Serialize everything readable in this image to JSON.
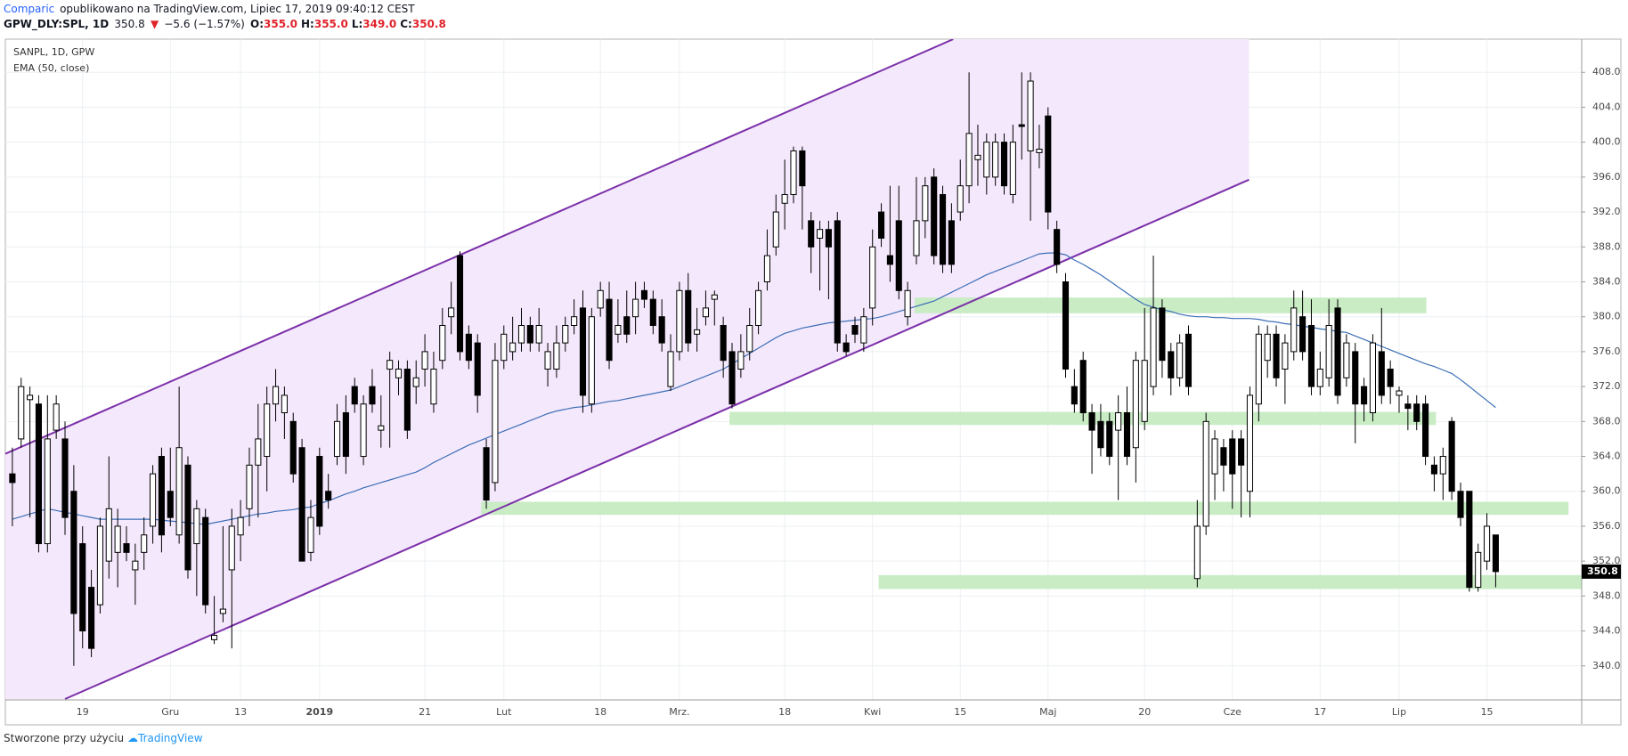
{
  "header": {
    "author": "Comparic",
    "published": "opublikowano na TradingView.com, Lipiec 17, 2019 09:40:12 CEST",
    "symbol": "GPW_DLY:SPL, 1D",
    "last": "350.8",
    "change": "−5.6 (−1.57%)",
    "ohlc": [
      {
        "key": "O:",
        "value": "355.0"
      },
      {
        "key": "H:",
        "value": "355.0"
      },
      {
        "key": "L:",
        "value": "349.0"
      },
      {
        "key": "C:",
        "value": "350.8"
      }
    ]
  },
  "chart_data": {
    "type": "candlestick",
    "title": "SANPL, 1D, GPW",
    "categories": [
      null,
      null,
      null,
      null,
      null,
      null,
      null,
      null,
      "19",
      null,
      null,
      null,
      null,
      null,
      null,
      null,
      null,
      null,
      "Gru",
      null,
      null,
      null,
      null,
      null,
      null,
      null,
      "13",
      null,
      null,
      null,
      null,
      null,
      null,
      null,
      null,
      "2019",
      null,
      null,
      null,
      null,
      null,
      null,
      null,
      null,
      null,
      null,
      null,
      "21",
      null,
      null,
      null,
      null,
      null,
      null,
      null,
      null,
      "Lut",
      null,
      null,
      null,
      null,
      null,
      null,
      null,
      null,
      null,
      null,
      "18",
      null,
      null,
      null,
      null,
      null,
      null,
      null,
      null,
      "Mrz.",
      null,
      null,
      null,
      null,
      null,
      null,
      null,
      null,
      null,
      null,
      null,
      "18",
      null,
      null,
      null,
      null,
      null,
      null,
      null,
      null,
      null,
      "Kwi",
      null,
      null,
      null,
      null,
      null,
      null,
      null,
      null,
      null,
      "15",
      null,
      null,
      null,
      null,
      null,
      null,
      null,
      null,
      null,
      "Maj",
      null,
      null,
      null,
      null,
      null,
      null,
      null,
      null,
      null,
      null,
      "20",
      null,
      null,
      null,
      null,
      null,
      null,
      null,
      null,
      null,
      "Cze",
      null,
      null,
      null,
      null,
      null,
      null,
      null,
      null,
      null,
      "17",
      null,
      null,
      null,
      null,
      null,
      null,
      null,
      null,
      "Lip",
      null,
      null,
      null,
      null,
      null,
      null,
      null,
      null,
      null,
      "15",
      null
    ],
    "open": [
      362,
      366,
      370.5,
      370,
      354,
      367,
      366,
      360,
      354,
      349,
      347,
      352,
      353,
      354,
      351,
      353,
      356,
      364,
      360,
      355,
      363,
      354,
      357,
      343,
      346,
      351,
      355,
      358,
      363,
      364,
      370,
      369,
      368,
      365,
      353,
      364,
      360,
      364,
      369,
      372,
      364,
      372,
      367,
      374,
      373,
      374,
      372,
      374,
      370,
      375,
      380,
      387,
      378,
      377,
      365,
      361,
      375,
      376,
      377,
      379,
      377,
      374,
      374,
      377,
      379,
      381,
      370,
      381,
      382,
      378,
      380,
      380,
      383,
      382,
      380,
      372,
      376,
      383,
      378,
      380,
      382,
      379,
      376,
      374,
      376,
      379,
      384,
      388,
      393,
      394,
      399,
      391,
      389,
      390,
      391,
      377,
      379,
      377,
      381,
      392,
      387,
      391,
      380,
      387,
      391,
      396,
      394,
      391,
      392,
      395,
      398,
      396,
      396,
      400,
      394,
      402,
      399,
      398.8,
      403,
      390,
      384,
      372,
      375,
      369,
      368,
      368,
      367,
      369,
      365,
      368,
      372,
      381,
      376,
      373,
      378,
      350,
      356,
      362,
      365,
      366,
      366,
      360,
      370,
      375,
      378,
      374,
      376,
      380,
      379,
      372,
      373,
      381,
      373,
      376,
      372,
      369,
      376,
      374,
      371,
      370,
      370,
      370,
      363,
      362,
      368,
      360,
      360,
      349,
      352,
      355
    ],
    "high": [
      365,
      373,
      372,
      371,
      371,
      371,
      368,
      363,
      356,
      351,
      357,
      364,
      358,
      356,
      354,
      357,
      363,
      365,
      365,
      372,
      364,
      359,
      358,
      348,
      356,
      358,
      359,
      365,
      370,
      372,
      374,
      372,
      369,
      366,
      359,
      365,
      362,
      370,
      371,
      373,
      371,
      374,
      371,
      376,
      375,
      375,
      375,
      378,
      376,
      381,
      384,
      387.5,
      379,
      378,
      366,
      377,
      379,
      380,
      381,
      380,
      381,
      377,
      379,
      380,
      382,
      383,
      381,
      384,
      384,
      382,
      383,
      384,
      384,
      383,
      382,
      378,
      384,
      385,
      381,
      383,
      383,
      380,
      377,
      378,
      381,
      384,
      390,
      394,
      398,
      399.5,
      399.5,
      392,
      391,
      391,
      392,
      378,
      380,
      381,
      390,
      393,
      395,
      395,
      384,
      396,
      396,
      397,
      395,
      393,
      398,
      408,
      402,
      401,
      401,
      401,
      402,
      408,
      408,
      402,
      404,
      391,
      385,
      374,
      376,
      370,
      370,
      369,
      371,
      372,
      376,
      381,
      387,
      382,
      377,
      378,
      379,
      359,
      369,
      367,
      366,
      367,
      367,
      372,
      379,
      379,
      379,
      378,
      383,
      383,
      382,
      376,
      382,
      382,
      378,
      377,
      373,
      378,
      381,
      375,
      372,
      371,
      371,
      371,
      364,
      365,
      368.5,
      361,
      360,
      354,
      357.5,
      355
    ],
    "low": [
      356,
      365,
      357,
      353,
      353,
      366,
      355,
      340,
      342,
      341,
      346,
      350,
      349,
      352,
      347,
      351,
      354,
      353,
      356,
      354,
      350,
      348,
      346,
      342.5,
      345,
      342,
      352,
      356,
      357,
      360,
      368,
      366,
      361,
      352,
      352,
      355,
      358,
      363,
      362,
      369,
      363,
      369,
      365,
      365,
      371,
      366,
      370,
      372,
      369,
      374,
      378,
      375,
      374,
      369,
      358,
      360,
      374,
      375,
      376,
      376,
      376,
      372,
      373,
      376,
      378,
      369,
      369,
      380,
      374,
      377,
      377,
      378,
      381,
      378,
      376,
      371.5,
      375,
      376,
      376,
      379,
      379,
      373,
      369.5,
      373,
      375,
      378,
      383,
      387,
      390,
      393,
      390,
      385,
      383,
      382,
      376,
      375.5,
      377,
      376,
      379,
      388,
      384,
      382,
      379,
      386,
      389,
      386,
      385,
      385,
      391,
      393,
      395,
      394,
      395,
      394,
      393,
      398,
      391,
      397,
      390,
      385,
      373,
      369,
      368,
      362,
      364,
      363,
      359,
      363,
      361,
      367,
      371,
      373,
      371,
      372,
      371,
      349,
      355,
      359,
      360,
      358,
      357,
      357,
      368,
      373,
      372,
      370,
      375,
      375,
      371,
      371,
      372,
      370,
      372,
      365.5,
      368,
      368,
      370,
      370,
      369,
      367,
      367,
      363,
      360,
      359,
      359,
      356,
      348.5,
      348.5,
      351,
      349
    ],
    "close": [
      361,
      372,
      371,
      354,
      366,
      370,
      357,
      346,
      344,
      342,
      356,
      358,
      356,
      353,
      352,
      355,
      362,
      355,
      357,
      365,
      351,
      358,
      347,
      343.5,
      346.5,
      356,
      357,
      363,
      366,
      370,
      372,
      371,
      362,
      352,
      357,
      356,
      359,
      368,
      364,
      370,
      370,
      370,
      367.5,
      375,
      374,
      367,
      373,
      376,
      374,
      379,
      381,
      376,
      375,
      371,
      359,
      375,
      378,
      377,
      379,
      377,
      379,
      376,
      377,
      379,
      380,
      371,
      380,
      383,
      375,
      379,
      378,
      382,
      382,
      379,
      377,
      376,
      383,
      377,
      378.5,
      381,
      382.5,
      375,
      370,
      376,
      379,
      383,
      387,
      392,
      394,
      399,
      395,
      388,
      390,
      388,
      377,
      376,
      378,
      380,
      388,
      389,
      386,
      383,
      383,
      391,
      395,
      387,
      386,
      386,
      395,
      401,
      398.5,
      400,
      400,
      395,
      400,
      401.8,
      407,
      399.2,
      392,
      386,
      374,
      370,
      369,
      367,
      365,
      364,
      369,
      364,
      375,
      375,
      381,
      375,
      373,
      377,
      372,
      356,
      368,
      366,
      363,
      362,
      363,
      371,
      378,
      378,
      373,
      377,
      381,
      376,
      372,
      374,
      379,
      371,
      377,
      370,
      370,
      377,
      371,
      372,
      371.5,
      369.5,
      368,
      364,
      362,
      364,
      360,
      357,
      349,
      353,
      356,
      350.8
    ],
    "up_color": "#ffffff",
    "down_color": "#000000",
    "series": [
      {
        "name": "EMA (50, close)",
        "color": "#3d6fb6",
        "values": [
          356.8,
          357.1,
          357.4,
          357.7,
          358.0,
          357.8,
          357.6,
          357.4,
          357.2,
          357.0,
          356.8,
          356.8,
          356.8,
          356.8,
          356.8,
          356.8,
          356.8,
          356.7,
          356.6,
          356.5,
          356.4,
          356.3,
          356.2,
          356.4,
          356.6,
          356.8,
          357.0,
          357.2,
          357.4,
          357.5,
          357.7,
          357.8,
          357.9,
          358.1,
          358.2,
          358.6,
          358.9,
          359.3,
          359.7,
          360.0,
          360.4,
          360.7,
          361.0,
          361.3,
          361.6,
          361.9,
          362.2,
          362.7,
          363.3,
          363.8,
          364.3,
          364.8,
          365.3,
          365.7,
          366.1,
          366.5,
          366.9,
          367.3,
          367.7,
          368.1,
          368.5,
          368.9,
          369.2,
          369.4,
          369.6,
          369.7,
          369.9,
          370.1,
          370.3,
          370.4,
          370.6,
          370.8,
          371.0,
          371.2,
          371.4,
          371.6,
          372.0,
          372.4,
          372.8,
          373.2,
          373.6,
          374.0,
          374.6,
          375.2,
          375.8,
          376.4,
          377.0,
          377.6,
          378.1,
          378.4,
          378.7,
          378.9,
          379.1,
          379.3,
          379.4,
          379.5,
          379.6,
          379.7,
          379.8,
          380.0,
          380.3,
          380.6,
          380.9,
          381.2,
          381.5,
          381.8,
          382.3,
          382.8,
          383.3,
          383.8,
          384.3,
          384.8,
          385.2,
          385.6,
          386.0,
          386.4,
          386.8,
          387.2,
          387.3,
          387.3,
          387.1,
          386.5,
          386.0,
          385.4,
          384.8,
          384.1,
          383.4,
          382.7,
          382.0,
          381.4,
          381.1,
          380.8,
          380.6,
          380.3,
          380.1,
          380.0,
          380.0,
          379.9,
          379.9,
          379.8,
          379.8,
          379.8,
          379.7,
          379.5,
          379.4,
          379.2,
          379.1,
          378.9,
          378.8,
          378.6,
          378.5,
          378.3,
          378.2,
          377.8,
          377.4,
          377.0,
          376.6,
          376.2,
          375.8,
          375.4,
          375.0,
          374.6,
          374.3,
          373.9,
          373.5,
          372.8,
          372.0,
          371.2,
          370.4,
          369.6
        ]
      }
    ],
    "xlim": [
      -0.8,
      178.8
    ],
    "ylim": [
      336.1,
      411.8
    ],
    "yticks": [
      {
        "value": 340,
        "label": "340.0"
      },
      {
        "value": 344,
        "label": "344.0"
      },
      {
        "value": 348,
        "label": "348.0"
      },
      {
        "value": 352,
        "label": "352.0"
      },
      {
        "value": 356,
        "label": "356.0"
      },
      {
        "value": 360,
        "label": "360.0"
      },
      {
        "value": 364,
        "label": "364.0"
      },
      {
        "value": 368,
        "label": "368.0"
      },
      {
        "value": 372,
        "label": "372.0"
      },
      {
        "value": 376,
        "label": "376.0"
      },
      {
        "value": 380,
        "label": "380.0"
      },
      {
        "value": 384,
        "label": "384.0"
      },
      {
        "value": 388,
        "label": "388.0"
      },
      {
        "value": 392,
        "label": "392.0"
      },
      {
        "value": 396,
        "label": "396.0"
      },
      {
        "value": 400,
        "label": "400.0"
      },
      {
        "value": 404,
        "label": "404.0"
      },
      {
        "value": 408,
        "label": "408.0"
      }
    ],
    "grid": true,
    "channel": {
      "color": "#7b2fa8",
      "fill": "#f4e8fc",
      "upper": {
        "x": [
          -0.8,
          107.2
        ],
        "y": [
          364.3,
          411.8
        ]
      },
      "lower": {
        "x": [
          6,
          140.9
        ],
        "y": [
          336.2,
          395.7
        ]
      }
    },
    "zone_color": "#c9ecc5",
    "zones": [
      {
        "x": [
          102.8,
          161.1
        ],
        "y": [
          380.4,
          382.2
        ]
      },
      {
        "x": [
          81.7,
          162.2
        ],
        "y": [
          367.6,
          369.1
        ]
      },
      {
        "x": [
          53.4,
          177.3
        ],
        "y": [
          357.3,
          358.8
        ]
      },
      {
        "x": [
          98.7,
          178.8
        ],
        "y": [
          348.8,
          350.4
        ]
      }
    ]
  },
  "footer": {
    "text": "Stworzone przy użyciu",
    "brand": "TradingView"
  }
}
